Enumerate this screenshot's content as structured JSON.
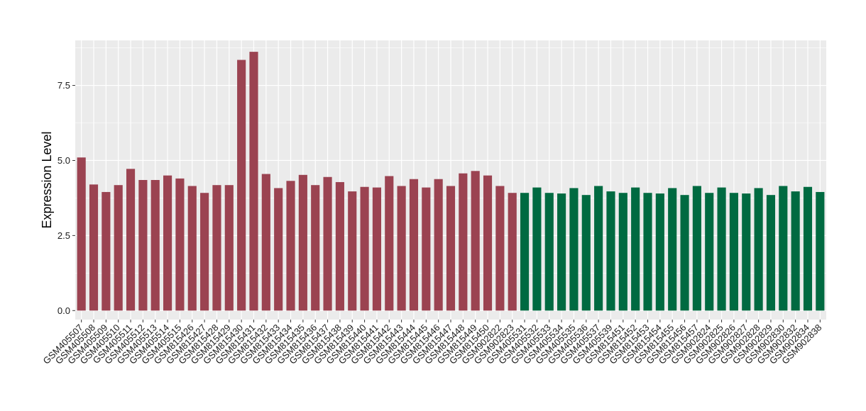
{
  "chart_data": {
    "type": "bar",
    "title": "",
    "xlabel": "",
    "ylabel": "Expression Level",
    "ylim": [
      -0.3,
      9.0
    ],
    "yticks": [
      0.0,
      2.5,
      5.0,
      7.5
    ],
    "ytick_labels": [
      "0.0",
      "2.5",
      "5.0",
      "7.5"
    ],
    "grid": true,
    "legend": "none",
    "panel_background": "#ebebeb",
    "grid_color": "#ffffff",
    "categories": [
      "GSM405507",
      "GSM405508",
      "GSM405509",
      "GSM405510",
      "GSM405511",
      "GSM405512",
      "GSM405513",
      "GSM405514",
      "GSM405515",
      "GSM815426",
      "GSM815427",
      "GSM815428",
      "GSM815429",
      "GSM815430",
      "GSM815431",
      "GSM815432",
      "GSM815433",
      "GSM815434",
      "GSM815435",
      "GSM815436",
      "GSM815437",
      "GSM815438",
      "GSM815439",
      "GSM815440",
      "GSM815441",
      "GSM815442",
      "GSM815443",
      "GSM815444",
      "GSM815445",
      "GSM815446",
      "GSM815447",
      "GSM815448",
      "GSM815449",
      "GSM815450",
      "GSM902822",
      "GSM902823",
      "GSM405531",
      "GSM405532",
      "GSM405533",
      "GSM405534",
      "GSM405535",
      "GSM405536",
      "GSM405537",
      "GSM405539",
      "GSM815451",
      "GSM815452",
      "GSM815453",
      "GSM815454",
      "GSM815455",
      "GSM815456",
      "GSM815457",
      "GSM902824",
      "GSM902825",
      "GSM902826",
      "GSM902827",
      "GSM902828",
      "GSM902829",
      "GSM902830",
      "GSM902832",
      "GSM902834",
      "GSM902838"
    ],
    "values": [
      5.1,
      4.2,
      3.95,
      4.18,
      4.72,
      4.35,
      4.35,
      4.5,
      4.4,
      4.15,
      3.92,
      4.18,
      4.18,
      8.35,
      8.62,
      4.55,
      4.08,
      4.32,
      4.52,
      4.18,
      4.45,
      4.28,
      3.97,
      4.12,
      4.1,
      4.48,
      4.15,
      4.38,
      4.1,
      4.38,
      4.15,
      4.57,
      4.65,
      4.5,
      4.15,
      3.92,
      3.92,
      4.1,
      3.92,
      3.9,
      4.08,
      3.85,
      4.15,
      3.97,
      3.92,
      4.1,
      3.92,
      3.9,
      4.08,
      3.85,
      4.15,
      3.92,
      4.1,
      3.92,
      3.9,
      4.08,
      3.85,
      4.15,
      3.97,
      4.12,
      3.95
    ],
    "group_sizes": [
      36,
      25
    ],
    "group_colors": [
      "#9b4351",
      "#006a41"
    ]
  }
}
